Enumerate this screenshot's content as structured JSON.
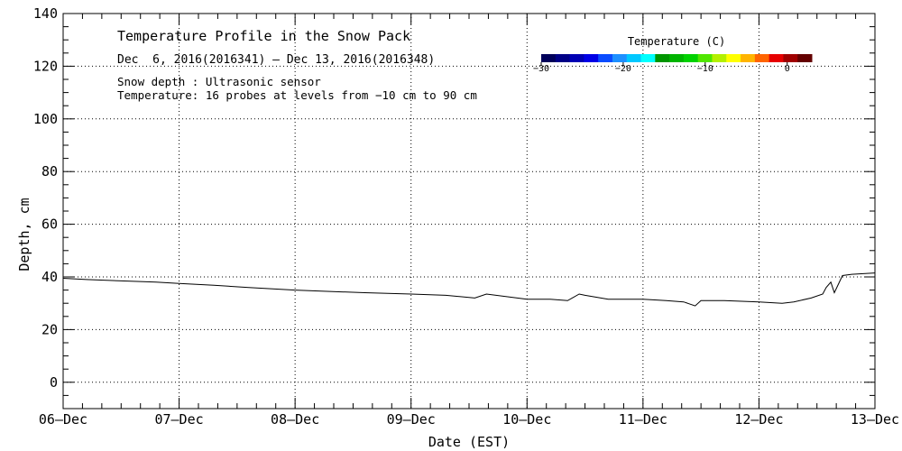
{
  "chart_data": {
    "type": "line",
    "title": "Temperature Profile in the Snow Pack",
    "subtitle": "Dec  6, 2016(2016341) — Dec 13, 2016(2016348)",
    "notes": [
      "Snow depth : Ultrasonic sensor",
      "Temperature: 16 probes at levels from −10 cm to 90 cm"
    ],
    "xlabel": "Date (EST)",
    "ylabel": "Depth, cm",
    "x_tick_labels": [
      "06—Dec",
      "07—Dec",
      "08—Dec",
      "09—Dec",
      "10—Dec",
      "11—Dec",
      "12—Dec",
      "13—Dec"
    ],
    "y_tick_labels": [
      "0",
      "20",
      "40",
      "60",
      "80",
      "100",
      "120",
      "140"
    ],
    "xlim": [
      0,
      7
    ],
    "ylim": [
      -10,
      140
    ],
    "grid": true,
    "series": [
      {
        "color": "#000000",
        "x": [
          0,
          0.2,
          0.5,
          0.8,
          1.0,
          1.3,
          1.6,
          2.0,
          2.3,
          2.6,
          3.0,
          3.3,
          3.55,
          3.65,
          4.0,
          4.2,
          4.35,
          4.45,
          4.5,
          4.7,
          5.0,
          5.2,
          5.35,
          5.45,
          5.5,
          5.7,
          6.0,
          6.2,
          6.3,
          6.45,
          6.55,
          6.58,
          6.62,
          6.65,
          6.72,
          6.8,
          7.0
        ],
        "y": [
          39.5,
          39,
          38.5,
          38,
          37.5,
          36.8,
          36,
          35,
          34.5,
          34,
          33.5,
          33,
          32,
          33.5,
          31.5,
          31.5,
          31,
          33.5,
          33,
          31.5,
          31.5,
          31,
          30.5,
          29,
          31,
          31,
          30.5,
          30,
          30.5,
          32,
          33.5,
          36,
          38,
          34,
          40.5,
          41,
          41.5
        ]
      }
    ]
  },
  "colorbar": {
    "title": "Temperature (C)",
    "tick_labels": [
      "−30",
      "−20",
      "−10",
      "0"
    ],
    "tick_values": [
      -30,
      -20,
      -10,
      0
    ],
    "range": [
      -30,
      3
    ],
    "colors": [
      "#00005a",
      "#000086",
      "#0000b4",
      "#0000e6",
      "#0a4cff",
      "#1e90ff",
      "#00c8ff",
      "#00ffff",
      "#009600",
      "#00b400",
      "#00d200",
      "#50e600",
      "#b4f000",
      "#ffff00",
      "#ffb400",
      "#ff6400",
      "#e60000",
      "#a00000",
      "#640000"
    ]
  }
}
